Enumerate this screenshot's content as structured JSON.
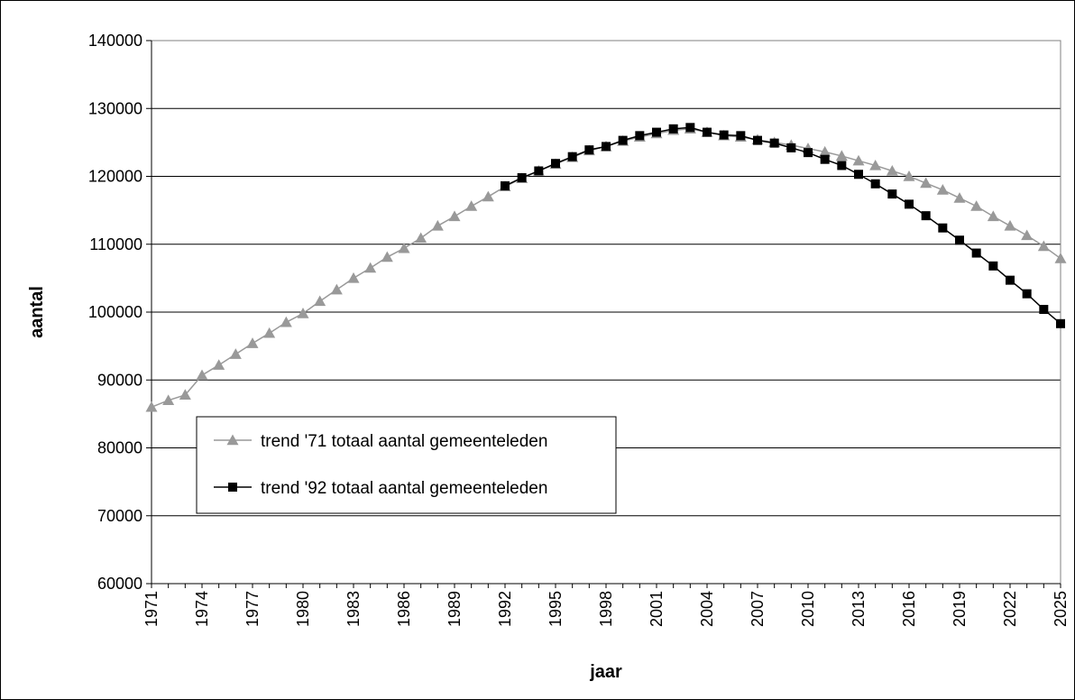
{
  "chart_data": {
    "type": "line",
    "title": "",
    "xlabel": "jaar",
    "ylabel": "aantal",
    "ylim": [
      60000,
      140000
    ],
    "yticks": [
      60000,
      70000,
      80000,
      90000,
      100000,
      110000,
      120000,
      130000,
      140000
    ],
    "xlim": [
      1971,
      2025
    ],
    "xtick_labels": [
      1971,
      1974,
      1977,
      1980,
      1983,
      1986,
      1989,
      1992,
      1995,
      1998,
      2001,
      2004,
      2007,
      2010,
      2013,
      2016,
      2019,
      2022,
      2025
    ],
    "grid": "horizontal",
    "legend_placement": "lower-left",
    "series": [
      {
        "name": "trend '71 totaal aantal gemeenteleden",
        "color": "#999999",
        "marker": "triangle",
        "x": [
          1971,
          1972,
          1973,
          1974,
          1975,
          1976,
          1977,
          1978,
          1979,
          1980,
          1981,
          1982,
          1983,
          1984,
          1985,
          1986,
          1987,
          1988,
          1989,
          1990,
          1991,
          1992,
          1993,
          1994,
          1995,
          1996,
          1997,
          1998,
          1999,
          2000,
          2001,
          2002,
          2003,
          2004,
          2005,
          2006,
          2007,
          2008,
          2009,
          2010,
          2011,
          2012,
          2013,
          2014,
          2015,
          2016,
          2017,
          2018,
          2019,
          2020,
          2021,
          2022,
          2023,
          2024,
          2025
        ],
        "values": [
          86000,
          87000,
          87800,
          90700,
          92200,
          93800,
          95400,
          96900,
          98500,
          99800,
          101600,
          103300,
          105000,
          106500,
          108100,
          109400,
          110900,
          112700,
          114100,
          115600,
          117000,
          118500,
          119700,
          120800,
          121800,
          122800,
          123800,
          124400,
          125200,
          125800,
          126300,
          126800,
          127000,
          126500,
          126000,
          125800,
          125400,
          125000,
          124600,
          124100,
          123600,
          123000,
          122300,
          121600,
          120800,
          120000,
          119000,
          118000,
          116800,
          115600,
          114100,
          112700,
          111300,
          109700,
          107900
        ]
      },
      {
        "name": "trend '92 totaal aantal gemeenteleden",
        "color": "#000000",
        "marker": "square",
        "x": [
          1992,
          1993,
          1994,
          1995,
          1996,
          1997,
          1998,
          1999,
          2000,
          2001,
          2002,
          2003,
          2004,
          2005,
          2006,
          2007,
          2008,
          2009,
          2010,
          2011,
          2012,
          2013,
          2014,
          2015,
          2016,
          2017,
          2018,
          2019,
          2020,
          2021,
          2022,
          2023,
          2024,
          2025
        ],
        "values": [
          118600,
          119800,
          120800,
          121900,
          122900,
          123900,
          124400,
          125300,
          126000,
          126500,
          127000,
          127200,
          126500,
          126100,
          126000,
          125300,
          124900,
          124200,
          123500,
          122500,
          121600,
          120300,
          118900,
          117400,
          115900,
          114200,
          112400,
          110600,
          108700,
          106800,
          104700,
          102700,
          100400,
          98300
        ]
      }
    ]
  }
}
